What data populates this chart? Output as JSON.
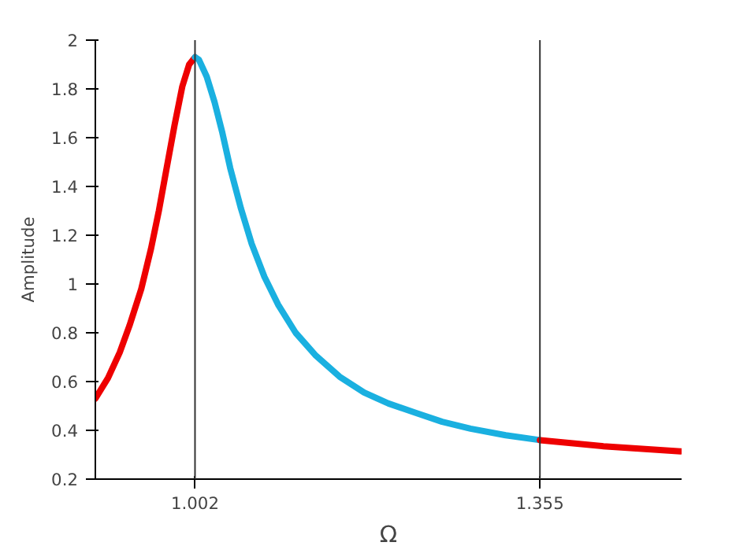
{
  "chart_data": {
    "type": "line",
    "xlabel": "Ω",
    "ylabel": "Amplitude",
    "xlim": [
      0.9,
      1.5
    ],
    "ylim": [
      0.2,
      2
    ],
    "xticks": [
      1.002,
      1.355
    ],
    "yticks": [
      0.2,
      0.4,
      0.6,
      0.8,
      1,
      1.2,
      1.4,
      1.6,
      1.8,
      2
    ],
    "line_style": "solid",
    "series": [
      {
        "color": "#ee0000",
        "x": [
          0.9,
          0.913,
          0.925,
          0.935,
          0.947,
          0.957,
          0.965,
          0.973,
          0.981,
          0.989,
          0.996,
          1.002
        ],
        "values": [
          0.53,
          0.615,
          0.72,
          0.83,
          0.98,
          1.145,
          1.3,
          1.476,
          1.65,
          1.81,
          1.9,
          1.93
        ]
      },
      {
        "color": "#1ab0e0",
        "x": [
          1.002,
          1.006,
          1.014,
          1.022,
          1.03,
          1.038,
          1.049,
          1.06,
          1.073,
          1.087,
          1.105,
          1.125,
          1.15,
          1.175,
          1.2,
          1.229,
          1.255,
          1.284,
          1.32,
          1.355
        ],
        "values": [
          1.93,
          1.92,
          1.85,
          1.746,
          1.62,
          1.476,
          1.31,
          1.165,
          1.03,
          0.916,
          0.8,
          0.709,
          0.62,
          0.555,
          0.51,
          0.47,
          0.435,
          0.407,
          0.38,
          0.36
        ]
      },
      {
        "color": "#ee0000",
        "x": [
          1.355,
          1.42,
          1.499
        ],
        "values": [
          0.36,
          0.335,
          0.314
        ]
      }
    ],
    "ref_lines": [
      {
        "axis": "x",
        "value": 1.002,
        "color": "#333333"
      },
      {
        "axis": "x",
        "value": 1.355,
        "color": "#333333"
      }
    ]
  }
}
